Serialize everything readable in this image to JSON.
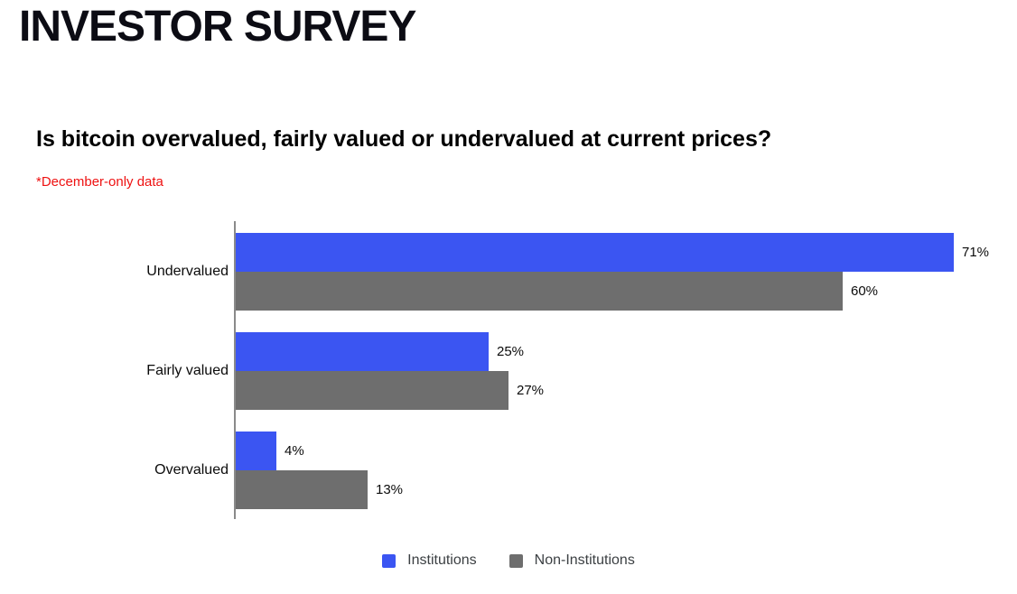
{
  "page": {
    "title": "INVESTOR SURVEY",
    "chart_title": "Is bitcoin overvalued, fairly valued or undervalued at current prices?",
    "footnote": "*December-only data"
  },
  "colors": {
    "institutions_blue": "#3b55f2",
    "non_institutions_gray": "#6e6e6e",
    "footnote_red": "#ee1111",
    "axis_gray": "#8a8a8a",
    "legend_text": "#3c4043"
  },
  "chart_data": {
    "type": "bar",
    "orientation": "horizontal",
    "title": "Is bitcoin overvalued, fairly valued or undervalued at current prices?",
    "subtitle": "*December-only data",
    "categories": [
      "Undervalued",
      "Fairly valued",
      "Overvalued"
    ],
    "series": [
      {
        "name": "Institutions",
        "color": "#3b55f2",
        "values": [
          71,
          25,
          4
        ]
      },
      {
        "name": "Non-Institutions",
        "color": "#6e6e6e",
        "values": [
          60,
          27,
          13
        ]
      }
    ],
    "value_suffix": "%",
    "xlim": [
      0,
      75
    ],
    "grid": false,
    "legend_position": "bottom",
    "legend": [
      "Institutions",
      "Non-Institutions"
    ]
  }
}
